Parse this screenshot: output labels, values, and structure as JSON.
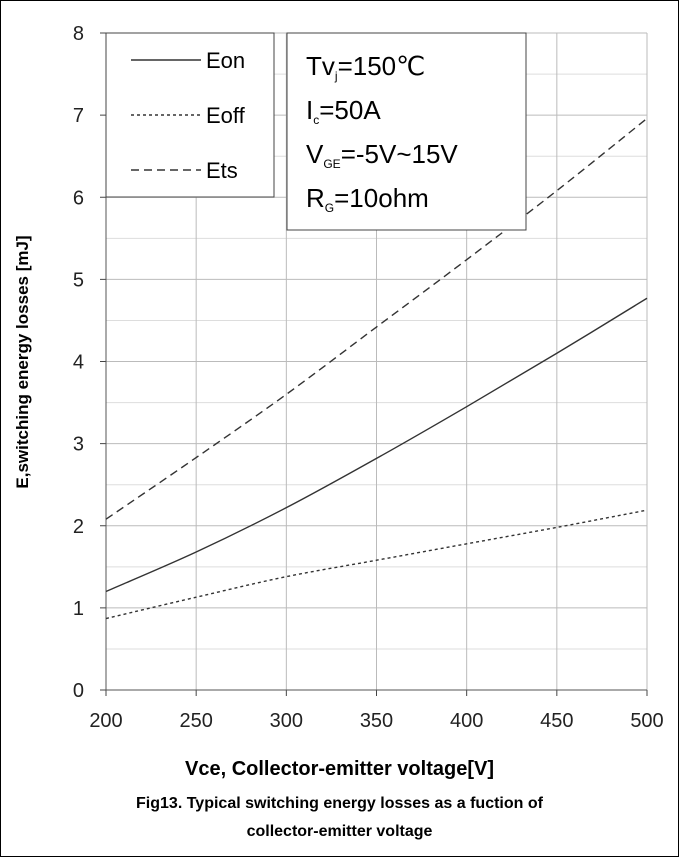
{
  "chart_data": {
    "type": "line",
    "xlabel": "Vce, Collector-emitter voltage[V]",
    "ylabel": "E,switching energy losses [mJ]",
    "xlim": [
      200,
      500
    ],
    "ylim": [
      0,
      8
    ],
    "xticks": [
      200,
      250,
      300,
      350,
      400,
      450,
      500
    ],
    "yticks": [
      0,
      1,
      2,
      3,
      4,
      5,
      6,
      7,
      8
    ],
    "grid": true,
    "legend_position": "top-left",
    "series": [
      {
        "name": "Eon",
        "style": "solid",
        "x": [
          200,
          250,
          300,
          350,
          400,
          450,
          500
        ],
        "y": [
          1.2,
          1.68,
          2.22,
          2.82,
          3.45,
          4.1,
          4.77
        ]
      },
      {
        "name": "Eoff",
        "style": "dotted",
        "x": [
          200,
          250,
          300,
          350,
          400,
          450,
          500
        ],
        "y": [
          0.87,
          1.13,
          1.38,
          1.58,
          1.78,
          1.98,
          2.19
        ]
      },
      {
        "name": "Ets",
        "style": "dashed",
        "x": [
          200,
          250,
          300,
          350,
          400,
          450,
          500
        ],
        "y": [
          2.08,
          2.83,
          3.6,
          4.42,
          5.24,
          6.08,
          6.96
        ]
      }
    ],
    "conditions": [
      {
        "main": "Tv",
        "sub": "j",
        "rest": "=150℃"
      },
      {
        "main": "I",
        "sub": "c",
        "rest": "=50A"
      },
      {
        "main": "V",
        "sub": "GE",
        "rest": "=-5V~15V"
      },
      {
        "main": "R",
        "sub": "G",
        "rest": "=10ohm"
      }
    ]
  },
  "caption": {
    "line1": "Fig13. Typical switching energy losses as a fuction of",
    "line2": "collector-emitter voltage"
  }
}
